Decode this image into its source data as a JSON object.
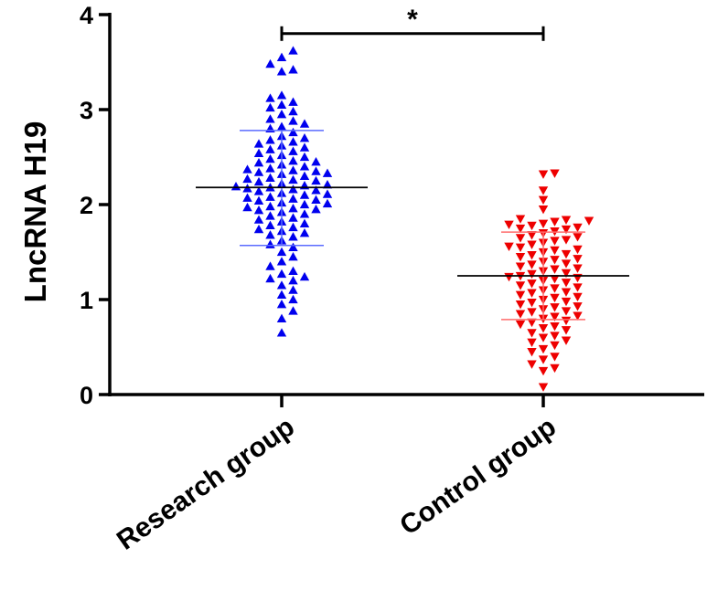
{
  "chart_data": {
    "type": "scatter",
    "ylabel": "LncRNA H19",
    "ylim": [
      0,
      4
    ],
    "yticks": [
      "0",
      "1",
      "2",
      "3",
      "4"
    ],
    "categories": [
      "Research group",
      "Control group"
    ],
    "significance": {
      "label": "*",
      "between": [
        "Research group",
        "Control group"
      ],
      "y": 3.8
    },
    "series": [
      {
        "category": "Research group",
        "marker": "triangle-up",
        "color": "#0000ee",
        "mean": 2.18,
        "sd_low": 1.57,
        "sd_high": 2.78,
        "values": [
          3.62,
          3.55,
          3.48,
          3.42,
          3.4,
          3.15,
          3.12,
          3.08,
          3.05,
          3.02,
          2.98,
          2.95,
          2.9,
          2.88,
          2.85,
          2.82,
          2.8,
          2.76,
          2.72,
          2.7,
          2.68,
          2.66,
          2.64,
          2.62,
          2.6,
          2.58,
          2.56,
          2.54,
          2.52,
          2.5,
          2.48,
          2.46,
          2.45,
          2.44,
          2.42,
          2.4,
          2.38,
          2.37,
          2.36,
          2.35,
          2.34,
          2.33,
          2.32,
          2.3,
          2.28,
          2.27,
          2.26,
          2.25,
          2.24,
          2.22,
          2.21,
          2.2,
          2.19,
          2.18,
          2.17,
          2.16,
          2.15,
          2.14,
          2.12,
          2.11,
          2.1,
          2.08,
          2.07,
          2.06,
          2.05,
          2.04,
          2.02,
          2.01,
          2.0,
          1.98,
          1.97,
          1.96,
          1.95,
          1.94,
          1.92,
          1.9,
          1.88,
          1.86,
          1.84,
          1.82,
          1.8,
          1.78,
          1.76,
          1.74,
          1.72,
          1.7,
          1.68,
          1.66,
          1.62,
          1.58,
          1.55,
          1.5,
          1.45,
          1.4,
          1.35,
          1.3,
          1.27,
          1.24,
          1.22,
          1.2,
          1.15,
          1.1,
          1.05,
          1.0,
          0.95,
          0.88,
          0.8,
          0.65
        ]
      },
      {
        "category": "Control group",
        "marker": "triangle-down",
        "color": "#ee0000",
        "mean": 1.25,
        "sd_low": 0.79,
        "sd_high": 1.71,
        "values": [
          2.33,
          2.32,
          2.15,
          2.05,
          1.95,
          1.85,
          1.84,
          1.83,
          1.82,
          1.8,
          1.79,
          1.78,
          1.76,
          1.75,
          1.74,
          1.72,
          1.7,
          1.68,
          1.66,
          1.65,
          1.63,
          1.62,
          1.6,
          1.58,
          1.56,
          1.55,
          1.53,
          1.52,
          1.5,
          1.48,
          1.47,
          1.45,
          1.43,
          1.42,
          1.4,
          1.38,
          1.37,
          1.35,
          1.33,
          1.32,
          1.3,
          1.28,
          1.27,
          1.25,
          1.24,
          1.23,
          1.22,
          1.2,
          1.18,
          1.17,
          1.15,
          1.13,
          1.12,
          1.1,
          1.08,
          1.07,
          1.05,
          1.03,
          1.02,
          1.0,
          0.98,
          0.97,
          0.95,
          0.93,
          0.92,
          0.9,
          0.88,
          0.87,
          0.85,
          0.83,
          0.82,
          0.8,
          0.78,
          0.76,
          0.74,
          0.72,
          0.7,
          0.68,
          0.65,
          0.62,
          0.6,
          0.57,
          0.55,
          0.52,
          0.48,
          0.45,
          0.4,
          0.37,
          0.32,
          0.28,
          0.25,
          0.08
        ]
      }
    ]
  }
}
